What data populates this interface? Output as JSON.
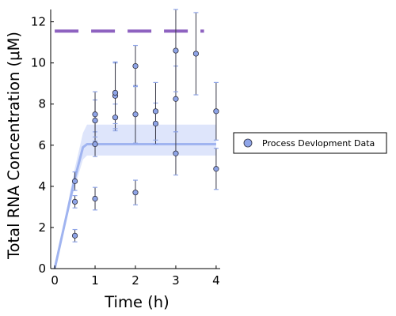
{
  "chart_data": {
    "type": "scatter",
    "title": "",
    "xlabel": "Time (h)",
    "ylabel": "Total RNA Concentration (μM)",
    "xlim": [
      -0.1,
      4.1
    ],
    "ylim": [
      0,
      12.6
    ],
    "xticks": [
      "0",
      "1",
      "2",
      "3",
      "4"
    ],
    "yticks": [
      "0",
      "2",
      "4",
      "6",
      "8",
      "10",
      "12"
    ],
    "grid": false,
    "legend_position": "right",
    "colors": {
      "points": "#8fa5e8",
      "point_edge": "#2d2d3c",
      "error_bars": "#3a3a48",
      "error_caps": "#8fa5e8",
      "fit_line": "#a0b4f0",
      "band": "#d8e0fa",
      "dashed_line": "#8e62c0"
    },
    "series": [
      {
        "name": "Process Devlopment Data",
        "kind": "points_with_error",
        "points": [
          {
            "x": 0.5,
            "y": 1.6,
            "err": 0.3
          },
          {
            "x": 0.5,
            "y": 3.25,
            "err": 0.3
          },
          {
            "x": 0.5,
            "y": 4.25,
            "err": 0.45
          },
          {
            "x": 1.0,
            "y": 3.4,
            "err": 0.55
          },
          {
            "x": 1.0,
            "y": 6.05,
            "err": 0.6
          },
          {
            "x": 1.0,
            "y": 7.2,
            "err": 1.0
          },
          {
            "x": 1.0,
            "y": 7.5,
            "err": 1.1
          },
          {
            "x": 1.5,
            "y": 7.35,
            "err": 0.65
          },
          {
            "x": 1.5,
            "y": 8.4,
            "err": 1.6
          },
          {
            "x": 1.5,
            "y": 8.55,
            "err": 1.5
          },
          {
            "x": 2.0,
            "y": 3.7,
            "err": 0.6
          },
          {
            "x": 2.0,
            "y": 7.5,
            "err": 1.4
          },
          {
            "x": 2.0,
            "y": 9.85,
            "err": 1.0
          },
          {
            "x": 2.5,
            "y": 7.05,
            "err": 1.0
          },
          {
            "x": 2.5,
            "y": 7.65,
            "err": 1.4
          },
          {
            "x": 3.0,
            "y": 5.6,
            "err": 1.05
          },
          {
            "x": 3.0,
            "y": 8.25,
            "err": 1.6
          },
          {
            "x": 3.0,
            "y": 10.6,
            "err": 2.0
          },
          {
            "x": 3.5,
            "y": 10.45,
            "err": 2.0
          },
          {
            "x": 4.0,
            "y": 4.85,
            "err": 1.0
          },
          {
            "x": 4.0,
            "y": 7.65,
            "err": 1.4
          }
        ]
      },
      {
        "kind": "fit_line_with_band",
        "x": [
          0,
          0.25,
          0.5,
          0.7,
          0.8,
          1.0,
          4.0
        ],
        "y": [
          0,
          2.2,
          4.4,
          5.9,
          6.05,
          6.05,
          6.05
        ],
        "band_upper": [
          0,
          2.4,
          4.9,
          6.6,
          7.0,
          7.0,
          7.0
        ],
        "band_lower": [
          0,
          2.0,
          4.0,
          5.3,
          5.5,
          5.5,
          5.5
        ]
      },
      {
        "kind": "dashed_line",
        "x": [
          0,
          3.7
        ],
        "y": [
          11.55,
          11.55
        ]
      }
    ]
  }
}
